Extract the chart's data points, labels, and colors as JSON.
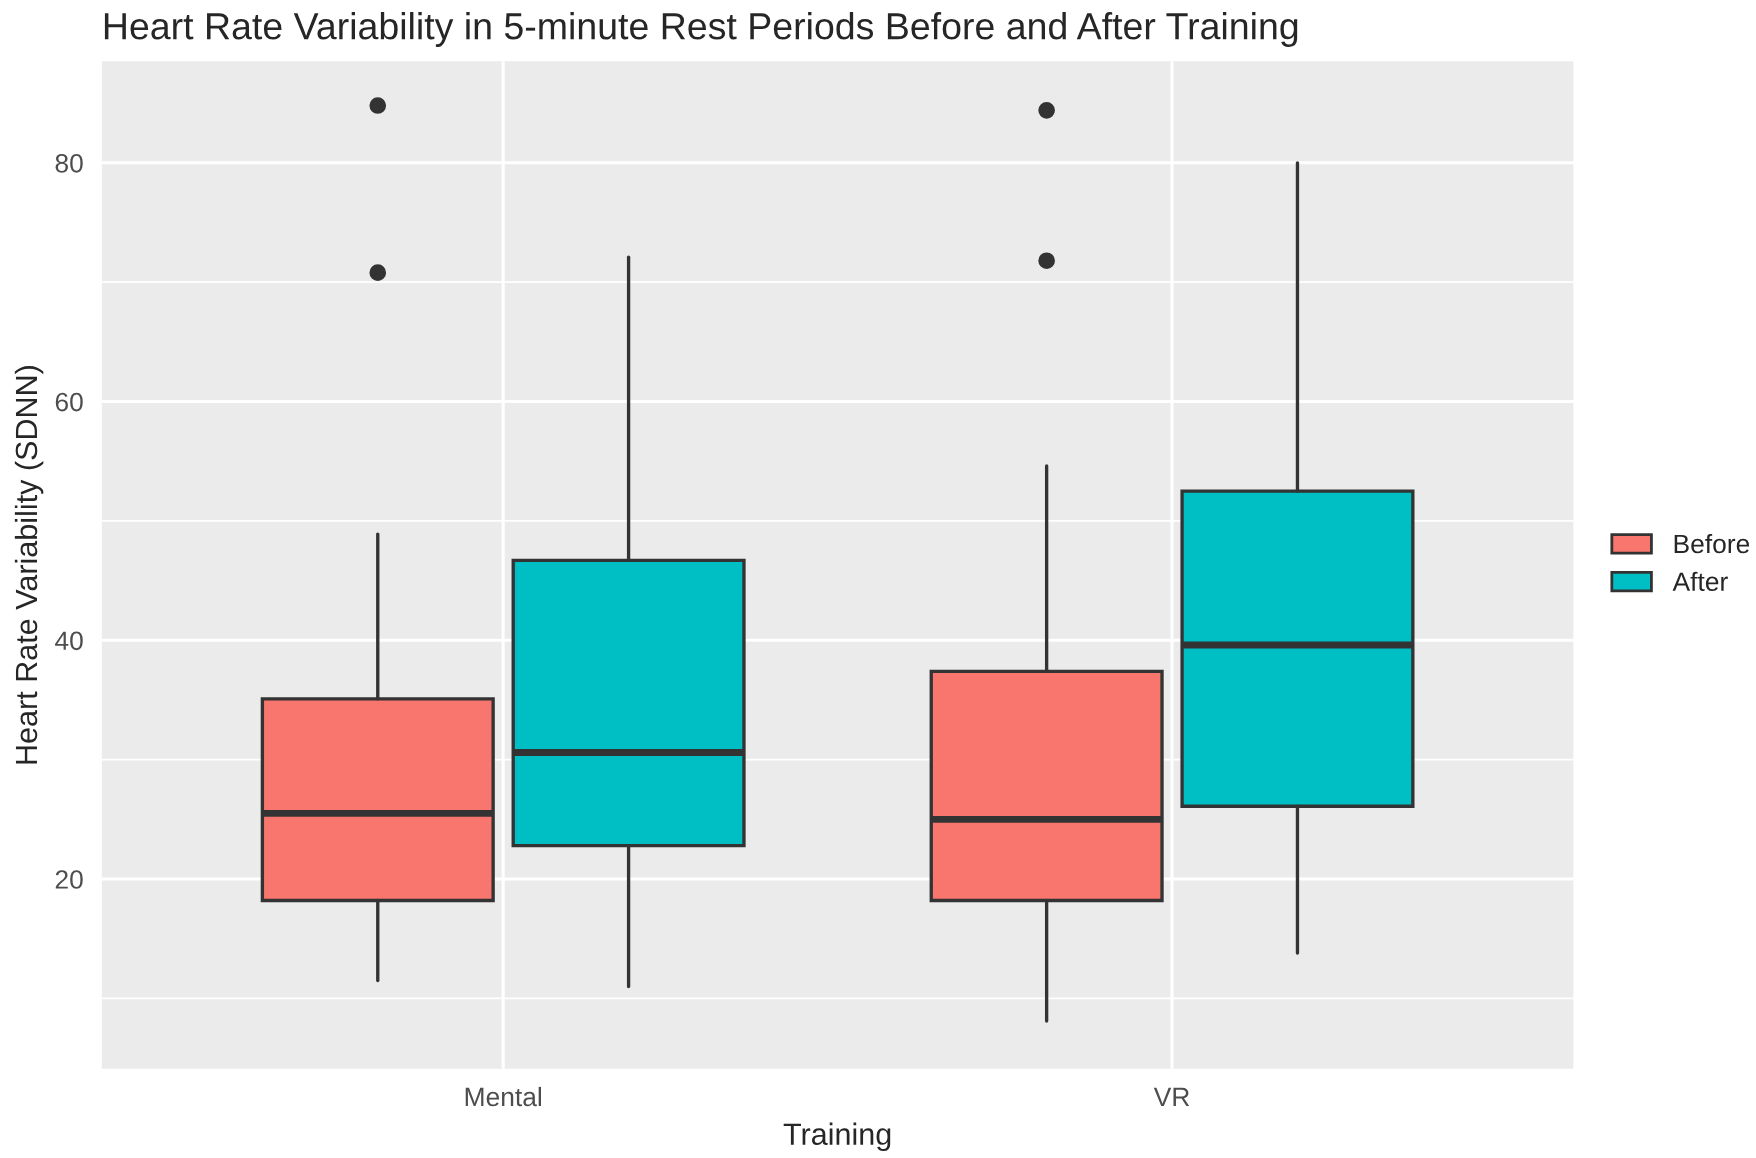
{
  "chart_data": {
    "type": "box",
    "title": "Heart Rate Variability in 5-minute Rest Periods Before and After Training",
    "xlabel": "Training",
    "ylabel": "Heart Rate Variability (SDNN)",
    "categories": [
      "Mental",
      "VR"
    ],
    "series": [
      {
        "name": "Before",
        "color": "#f8766d",
        "boxes": [
          {
            "low": 11.5,
            "q1": 18.2,
            "median": 25.5,
            "q3": 35.1,
            "high": 48.9,
            "outliers": [
              84.8,
              70.8
            ]
          },
          {
            "low": 8.1,
            "q1": 18.2,
            "median": 25.0,
            "q3": 37.4,
            "high": 54.6,
            "outliers": [
              84.4,
              71.8
            ]
          }
        ]
      },
      {
        "name": "After",
        "color": "#00bfc4",
        "boxes": [
          {
            "low": 11.0,
            "q1": 22.8,
            "median": 30.6,
            "q3": 46.7,
            "high": 72.1
          },
          {
            "low": 13.8,
            "q1": 26.1,
            "median": 39.6,
            "q3": 52.5,
            "high": 80.0
          }
        ]
      }
    ],
    "ylim": [
      4.1,
      88.5
    ],
    "yticks": [
      {
        "value": 10,
        "label": null
      },
      20,
      {
        "value": 30,
        "label": null
      },
      40,
      {
        "value": 50,
        "label": null
      },
      60,
      {
        "value": 70,
        "label": null
      },
      80
    ],
    "grid": true,
    "legend": "right"
  }
}
